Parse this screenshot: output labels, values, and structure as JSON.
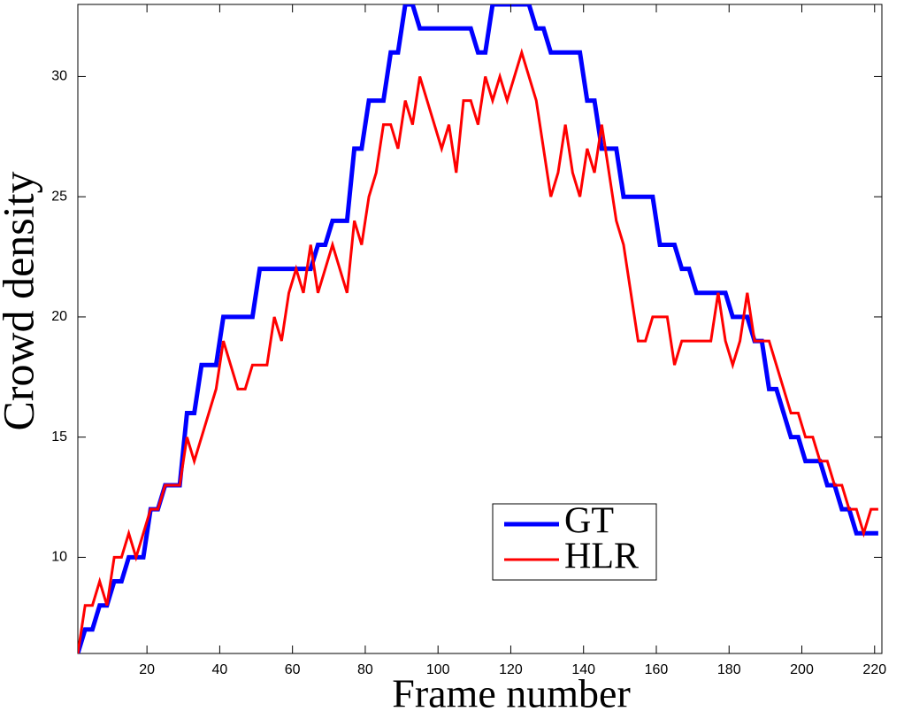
{
  "chart_data": {
    "type": "line",
    "x_label": "Frame number",
    "y_label": "Crowd density",
    "x": [
      1,
      3,
      5,
      7,
      9,
      11,
      13,
      15,
      17,
      19,
      21,
      23,
      25,
      27,
      29,
      31,
      33,
      35,
      37,
      39,
      41,
      43,
      45,
      47,
      49,
      51,
      53,
      55,
      57,
      59,
      61,
      63,
      65,
      67,
      69,
      71,
      73,
      75,
      77,
      79,
      81,
      83,
      85,
      87,
      89,
      91,
      93,
      95,
      97,
      99,
      101,
      103,
      105,
      107,
      109,
      111,
      113,
      115,
      117,
      119,
      121,
      123,
      125,
      127,
      129,
      131,
      133,
      135,
      137,
      139,
      141,
      143,
      145,
      147,
      149,
      151,
      153,
      155,
      157,
      159,
      161,
      163,
      165,
      167,
      169,
      171,
      173,
      175,
      177,
      179,
      181,
      183,
      185,
      187,
      189,
      191,
      193,
      195,
      197,
      199,
      201,
      203,
      205,
      207,
      209,
      211,
      213,
      215,
      217,
      219,
      221
    ],
    "series": [
      {
        "name": "GT",
        "color": "#0000ff",
        "values": [
          6,
          7,
          7,
          8,
          8,
          9,
          9,
          10,
          10,
          10,
          12,
          12,
          13,
          13,
          13,
          16,
          16,
          18,
          18,
          18,
          20,
          20,
          20,
          20,
          20,
          22,
          22,
          22,
          22,
          22,
          22,
          22,
          22,
          23,
          23,
          24,
          24,
          24,
          27,
          27,
          29,
          29,
          29,
          31,
          31,
          33,
          33,
          32,
          32,
          32,
          32,
          32,
          32,
          32,
          32,
          31,
          31,
          33,
          33,
          33,
          33,
          33,
          33,
          32,
          32,
          31,
          31,
          31,
          31,
          31,
          29,
          29,
          27,
          27,
          27,
          25,
          25,
          25,
          25,
          25,
          23,
          23,
          23,
          22,
          22,
          21,
          21,
          21,
          21,
          21,
          20,
          20,
          20,
          19,
          19,
          17,
          17,
          16,
          15,
          15,
          14,
          14,
          14,
          13,
          13,
          12,
          12,
          11,
          11,
          11,
          11
        ]
      },
      {
        "name": "HLR",
        "color": "#ff0000",
        "values": [
          6,
          8,
          8,
          9,
          8,
          10,
          10,
          11,
          10,
          11,
          12,
          12,
          13,
          13,
          13,
          15,
          14,
          15,
          16,
          17,
          19,
          18,
          17,
          17,
          18,
          18,
          18,
          20,
          19,
          21,
          22,
          21,
          23,
          21,
          22,
          23,
          22,
          21,
          24,
          23,
          25,
          26,
          28,
          28,
          27,
          29,
          28,
          30,
          29,
          28,
          27,
          28,
          26,
          29,
          29,
          28,
          30,
          29,
          30,
          29,
          30,
          31,
          30,
          29,
          27,
          25,
          26,
          28,
          26,
          25,
          27,
          26,
          28,
          26,
          24,
          23,
          21,
          19,
          19,
          20,
          20,
          20,
          18,
          19,
          19,
          19,
          19,
          19,
          21,
          19,
          18,
          19,
          21,
          19,
          19,
          19,
          18,
          17,
          16,
          16,
          15,
          15,
          14,
          14,
          13,
          13,
          12,
          12,
          11,
          12,
          12
        ]
      }
    ],
    "xlim": [
      1,
      222
    ],
    "ylim": [
      6,
      33
    ],
    "xticks": [
      20,
      40,
      60,
      80,
      100,
      120,
      140,
      160,
      180,
      200,
      220
    ],
    "yticks": [
      10,
      15,
      20,
      25,
      30
    ]
  }
}
